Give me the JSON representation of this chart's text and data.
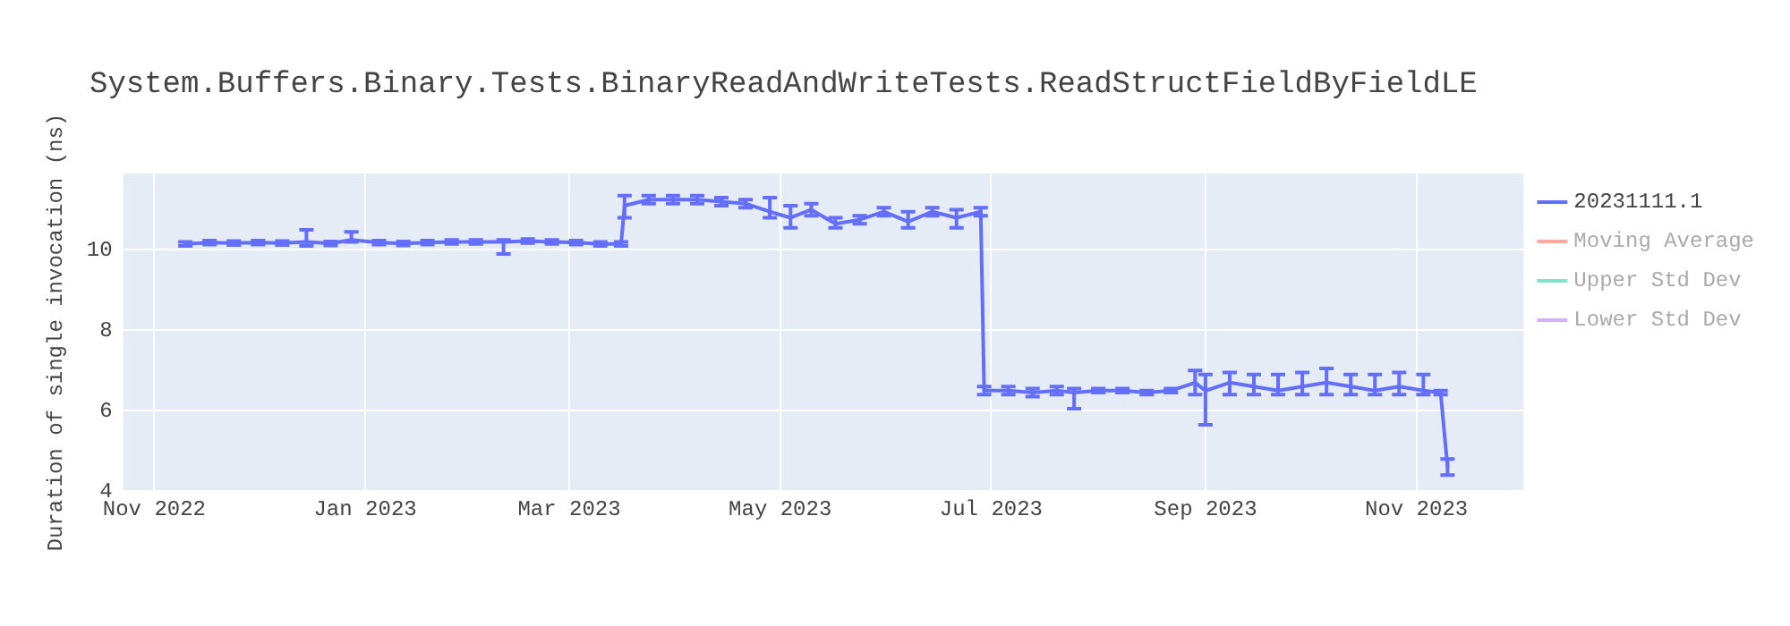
{
  "chart_data": {
    "type": "line",
    "title": "System.Buffers.Binary.Tests.BinaryReadAndWriteTests.ReadStructFieldByFieldLE",
    "ylabel": "Duration of single invocation (ns)",
    "x": [
      "2022-11-10",
      "2022-11-17",
      "2022-11-24",
      "2022-12-01",
      "2022-12-08",
      "2022-12-15",
      "2022-12-22",
      "2022-12-28",
      "2023-01-05",
      "2023-01-12",
      "2023-01-19",
      "2023-01-26",
      "2023-02-02",
      "2023-02-10",
      "2023-02-17",
      "2023-02-24",
      "2023-03-03",
      "2023-03-10",
      "2023-03-16",
      "2023-03-17",
      "2023-03-24",
      "2023-03-31",
      "2023-04-07",
      "2023-04-14",
      "2023-04-21",
      "2023-04-28",
      "2023-05-04",
      "2023-05-10",
      "2023-05-17",
      "2023-05-24",
      "2023-05-31",
      "2023-06-07",
      "2023-06-14",
      "2023-06-21",
      "2023-06-28",
      "2023-06-29",
      "2023-07-06",
      "2023-07-13",
      "2023-07-20",
      "2023-07-25",
      "2023-08-01",
      "2023-08-08",
      "2023-08-15",
      "2023-08-22",
      "2023-08-29",
      "2023-09-01",
      "2023-09-08",
      "2023-09-15",
      "2023-09-22",
      "2023-09-29",
      "2023-10-06",
      "2023-10-13",
      "2023-10-20",
      "2023-10-27",
      "2023-11-03",
      "2023-11-08",
      "2023-11-10"
    ],
    "series": [
      {
        "name": "20231111.1",
        "color": "#636efa",
        "values": [
          10.15,
          10.18,
          10.17,
          10.18,
          10.17,
          10.2,
          10.16,
          10.25,
          10.18,
          10.16,
          10.18,
          10.2,
          10.2,
          10.2,
          10.22,
          10.2,
          10.18,
          10.15,
          10.15,
          11.1,
          11.25,
          11.25,
          11.25,
          11.2,
          11.15,
          10.95,
          10.8,
          11.0,
          10.65,
          10.75,
          10.95,
          10.7,
          10.95,
          10.8,
          10.95,
          6.5,
          6.5,
          6.45,
          6.5,
          6.45,
          6.5,
          6.5,
          6.45,
          6.5,
          6.7,
          6.5,
          6.7,
          6.6,
          6.5,
          6.6,
          6.7,
          6.6,
          6.5,
          6.6,
          6.5,
          6.45,
          4.6
        ],
        "errors": [
          0.05,
          0.05,
          0.05,
          0.05,
          0.05,
          [
            10.1,
            10.5
          ],
          0.05,
          [
            10.2,
            10.45
          ],
          0.05,
          0.05,
          0.05,
          0.05,
          0.05,
          [
            9.9,
            10.25
          ],
          0.05,
          0.05,
          0.05,
          0.05,
          0.05,
          [
            10.8,
            11.35
          ],
          0.1,
          0.1,
          0.1,
          0.1,
          0.1,
          [
            10.8,
            11.3
          ],
          [
            10.55,
            11.1
          ],
          [
            10.85,
            11.15
          ],
          [
            10.55,
            10.8
          ],
          0.1,
          0.1,
          [
            10.55,
            10.95
          ],
          0.1,
          [
            10.55,
            11.0
          ],
          0.1,
          0.1,
          0.1,
          0.1,
          0.1,
          [
            6.05,
            6.55
          ],
          0.05,
          0.05,
          0.05,
          0.05,
          [
            6.4,
            7.0
          ],
          [
            5.65,
            6.9
          ],
          [
            6.4,
            6.95
          ],
          [
            6.4,
            6.9
          ],
          [
            6.4,
            6.9
          ],
          [
            6.4,
            6.95
          ],
          [
            6.4,
            7.05
          ],
          [
            6.4,
            6.9
          ],
          [
            6.4,
            6.9
          ],
          [
            6.4,
            6.95
          ],
          [
            6.4,
            6.9
          ],
          0.05,
          [
            4.4,
            4.8
          ]
        ]
      },
      {
        "name": "Moving Average",
        "color": "#ef553b",
        "values": [
          null,
          null,
          null,
          null,
          null,
          null,
          null,
          null,
          null,
          null,
          null,
          null,
          null,
          null,
          null,
          null,
          null,
          null,
          null,
          null,
          null,
          null,
          null,
          null,
          null,
          null,
          null,
          null,
          null,
          null,
          null,
          null,
          null,
          null,
          null,
          null,
          null,
          null,
          null,
          null,
          null,
          null,
          null,
          null,
          null,
          null,
          null,
          null,
          null,
          null,
          null,
          null,
          null,
          null,
          null,
          null,
          null
        ]
      },
      {
        "name": "Upper Std Dev",
        "color": "#00cc96",
        "values": [
          null,
          null,
          null,
          null,
          null,
          null,
          null,
          null,
          null,
          null,
          null,
          null,
          null,
          null,
          null,
          null,
          null,
          null,
          null,
          null,
          null,
          null,
          null,
          null,
          null,
          null,
          null,
          null,
          null,
          null,
          null,
          null,
          null,
          null,
          null,
          null,
          null,
          null,
          null,
          null,
          null,
          null,
          null,
          null,
          null,
          null,
          null,
          null,
          null,
          null,
          null,
          null,
          null,
          null,
          null,
          null,
          null
        ]
      },
      {
        "name": "Lower Std Dev",
        "color": "#ab63fa",
        "values": [
          null,
          null,
          null,
          null,
          null,
          null,
          null,
          null,
          null,
          null,
          null,
          null,
          null,
          null,
          null,
          null,
          null,
          null,
          null,
          null,
          null,
          null,
          null,
          null,
          null,
          null,
          null,
          null,
          null,
          null,
          null,
          null,
          null,
          null,
          null,
          null,
          null,
          null,
          null,
          null,
          null,
          null,
          null,
          null,
          null,
          null,
          null,
          null,
          null,
          null,
          null,
          null,
          null,
          null,
          null,
          null,
          null
        ]
      }
    ],
    "xlim": [
      "2022-10-23",
      "2023-12-02"
    ],
    "xticks": [
      {
        "value": "2022-11-01",
        "label": "Nov 2022"
      },
      {
        "value": "2023-01-01",
        "label": "Jan 2023"
      },
      {
        "value": "2023-03-01",
        "label": "Mar 2023"
      },
      {
        "value": "2023-05-01",
        "label": "May 2023"
      },
      {
        "value": "2023-07-01",
        "label": "Jul 2023"
      },
      {
        "value": "2023-09-01",
        "label": "Sep 2023"
      },
      {
        "value": "2023-11-01",
        "label": "Nov 2023"
      }
    ],
    "ylim": [
      4,
      11.9
    ],
    "yticks": [
      4,
      6,
      8,
      10
    ],
    "grid": true,
    "legend": "right",
    "marker": "none",
    "line_style": "solid"
  }
}
